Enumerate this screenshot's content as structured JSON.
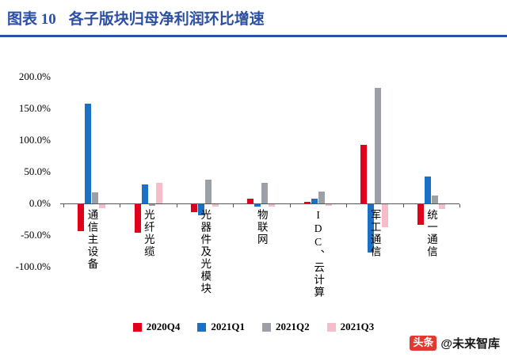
{
  "header": {
    "figure_label": "图表 10",
    "title": "各子版块归母净利润环比增速",
    "accent_color": "#2b4fa2"
  },
  "chart_data": {
    "type": "bar",
    "title": "各子版块归母净利润环比增速",
    "unit": "%",
    "categories": [
      "通信主设备",
      "光纤光缆",
      "光器件及光模块",
      "物联网",
      "IDC、云计算",
      "军工通信",
      "统一通信"
    ],
    "series": [
      {
        "name": "2020Q4",
        "color": "#e0001b",
        "values": [
          -42,
          -45,
          -12,
          8,
          3,
          92,
          -33
        ]
      },
      {
        "name": "2021Q1",
        "color": "#1b6fc4",
        "values": [
          157,
          30,
          -17,
          -4,
          8,
          -76,
          43
        ]
      },
      {
        "name": "2021Q2",
        "color": "#9ba0a6",
        "values": [
          17,
          -3,
          38,
          33,
          19,
          183,
          13
        ]
      },
      {
        "name": "2021Q3",
        "color": "#f4bdc9",
        "values": [
          -6,
          33,
          -4,
          -4,
          -3,
          -36,
          -8
        ]
      }
    ],
    "ylim": [
      -100,
      200
    ],
    "yticks": [
      {
        "value": 200,
        "label": "200.0%"
      },
      {
        "value": 150,
        "label": "150.0%"
      },
      {
        "value": 100,
        "label": "100.0%"
      },
      {
        "value": 50,
        "label": "50.0%"
      },
      {
        "value": 0,
        "label": "0.0%"
      },
      {
        "value": -50,
        "label": "-50.0%"
      },
      {
        "value": -100,
        "label": "-100.0%"
      }
    ],
    "grid": false,
    "legend_position": "bottom"
  },
  "footer": {
    "badge": "头条",
    "handle": "@未来智库",
    "badge_color": "#e2382e"
  }
}
